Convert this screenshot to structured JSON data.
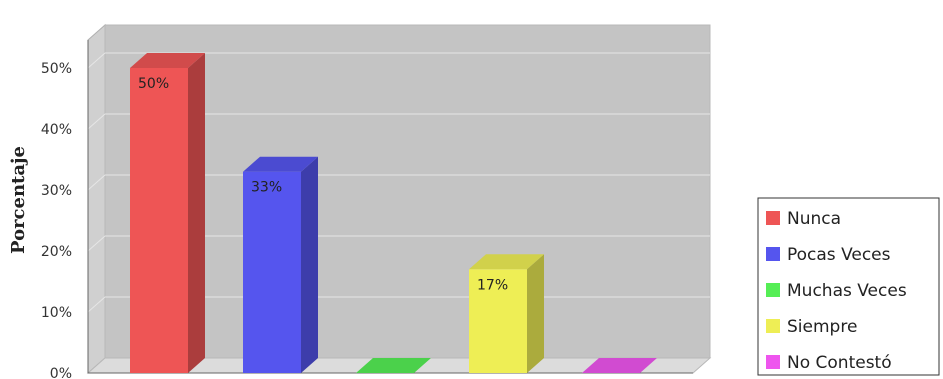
{
  "chart_data": {
    "type": "bar",
    "title": "",
    "xlabel": "",
    "ylabel": "Porcentaje",
    "ylim": [
      0,
      55
    ],
    "yticks": [
      0,
      10,
      20,
      30,
      40,
      50
    ],
    "ytick_labels": [
      "0%",
      "10%",
      "20%",
      "30%",
      "40%",
      "50%"
    ],
    "categories": [
      "Nunca",
      "Pocas Veces",
      "Muchas Veces",
      "Siempre",
      "No Contestó"
    ],
    "values": [
      50,
      33,
      0,
      17,
      0
    ],
    "data_labels": [
      "50%",
      "33%",
      "",
      "17%",
      ""
    ],
    "colors": [
      "#ee5555",
      "#5555ee",
      "#55ee55",
      "#eeee55",
      "#ee55ee"
    ],
    "grid": true,
    "legend_position": "right"
  }
}
